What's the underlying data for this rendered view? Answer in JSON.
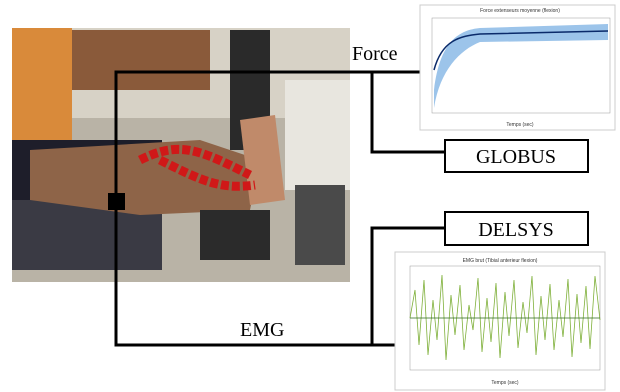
{
  "labels": {
    "force": "Force",
    "globus": "GLOBUS",
    "delsys": "DELSYS",
    "emg": "EMG"
  },
  "force_chart": {
    "title": "Force extenseurs moyenne (flexion)",
    "x_label": "Temps (sec)"
  },
  "emg_chart": {
    "title": "EMG brut (Tibial anterieur flexion)",
    "x_label": "Temps (sec)"
  }
}
